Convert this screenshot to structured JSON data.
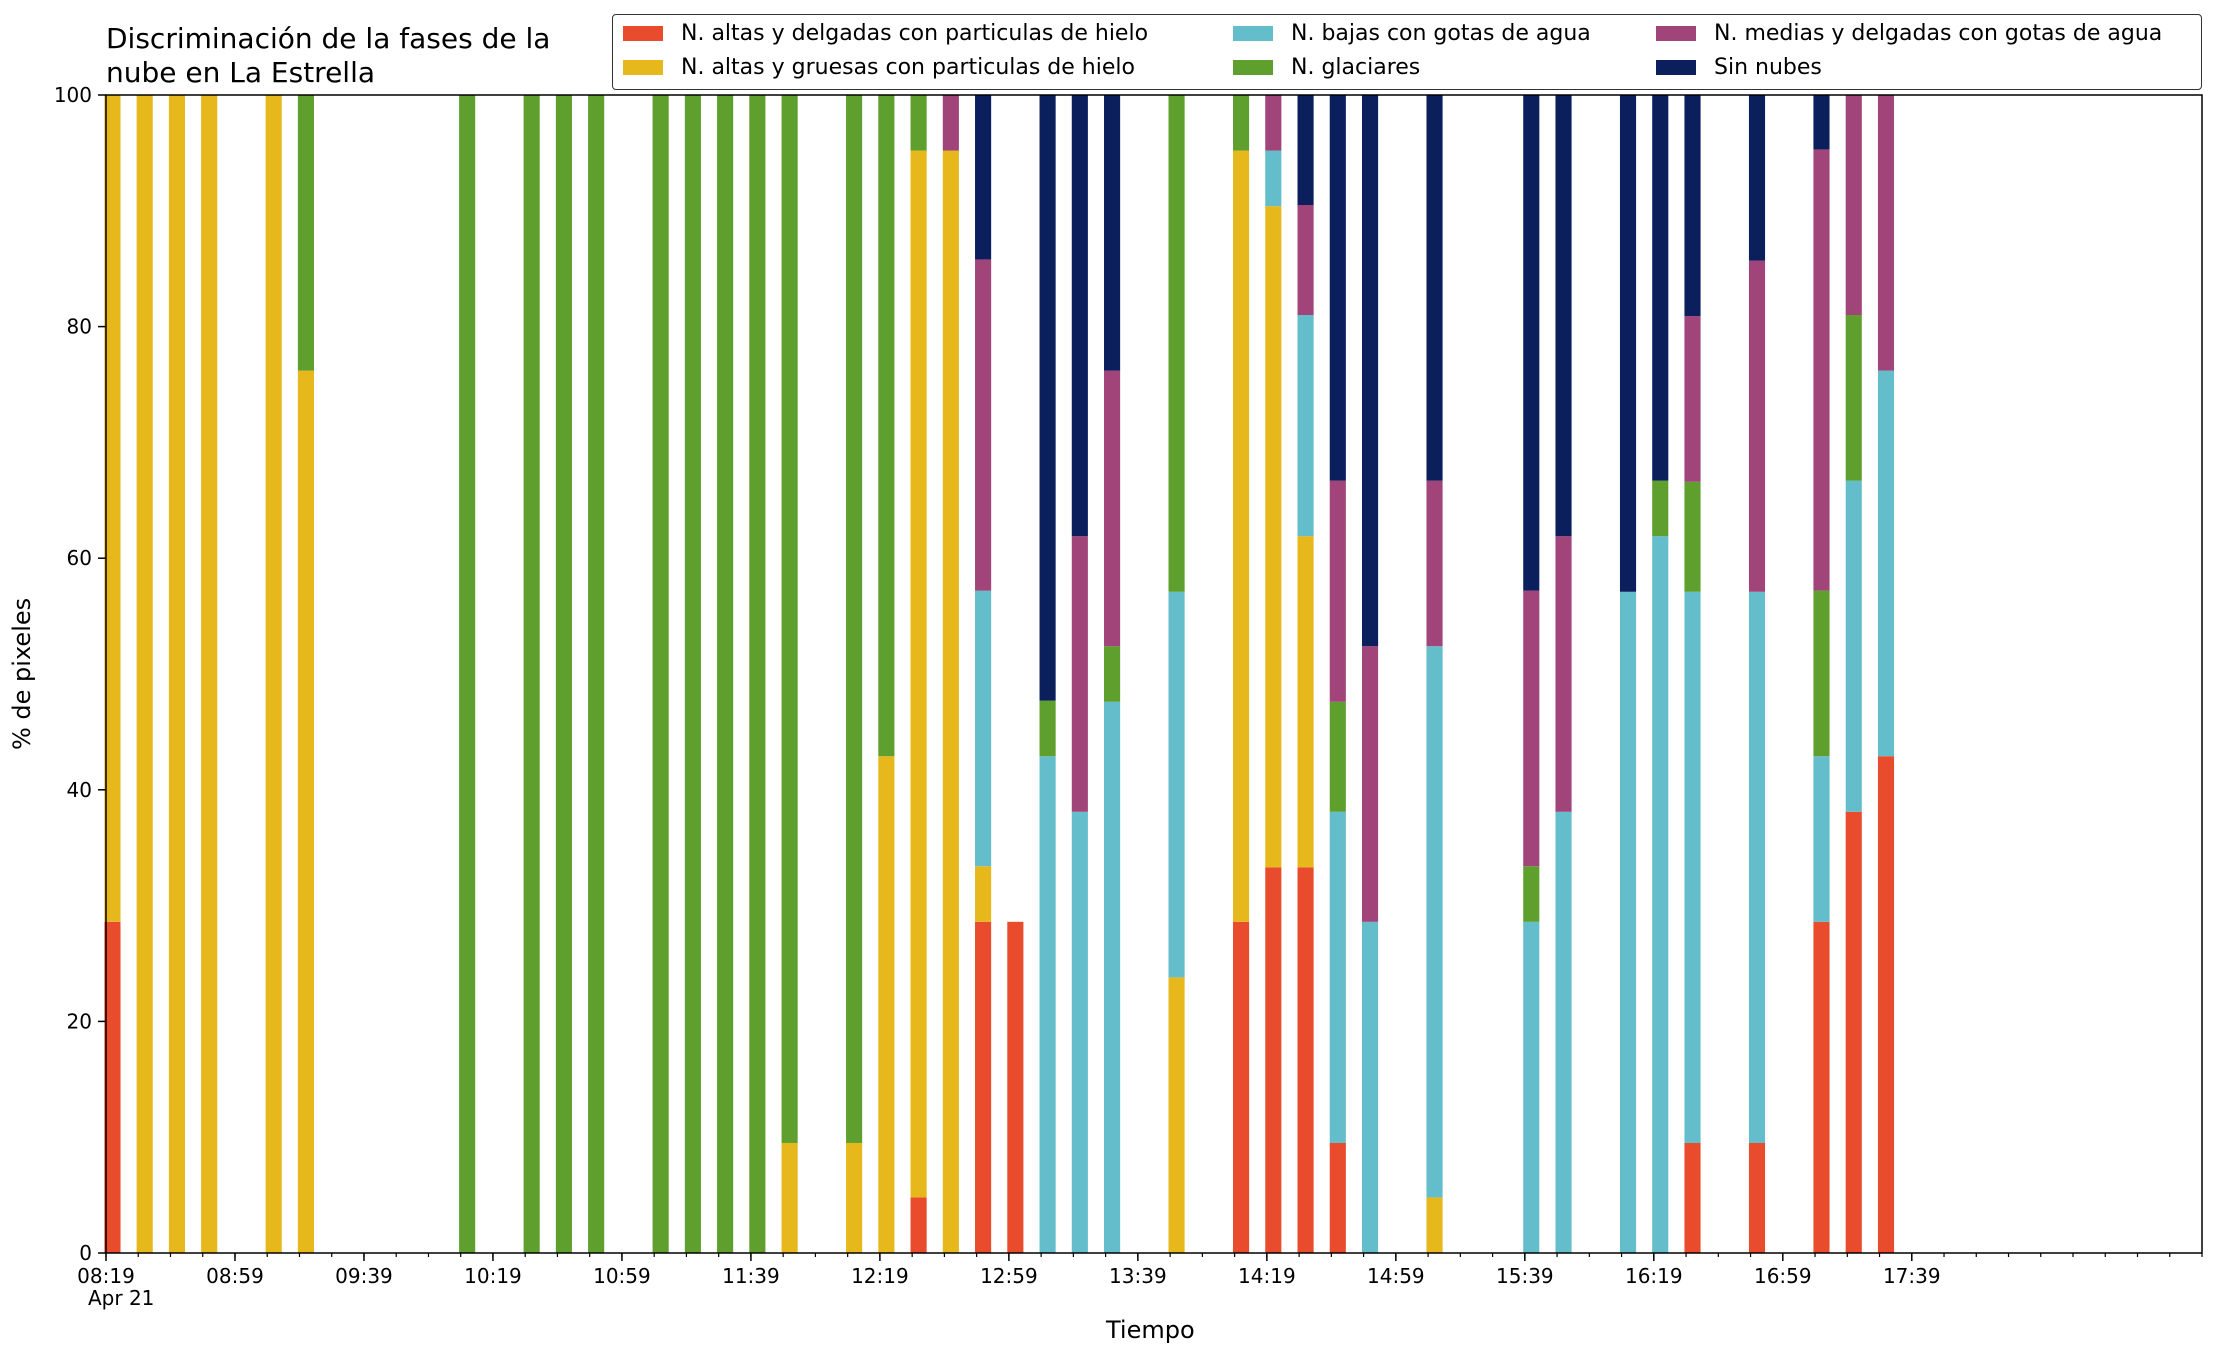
{
  "chart_data": {
    "type": "bar",
    "stacked": true,
    "title": "Discriminación de la fases de la\nnube en La Estrella",
    "xlabel": "Tiempo",
    "ylabel": "% de pixeles",
    "ylim": [
      0,
      100
    ],
    "yticks": [
      "0",
      "20",
      "40",
      "60",
      "80",
      "100"
    ],
    "x_start": "08:19",
    "x_end": "19:09",
    "x_date_label": "Apr 21",
    "x_ticks": [
      "08:19",
      "08:59",
      "09:39",
      "10:19",
      "10:59",
      "11:39",
      "12:19",
      "12:59",
      "13:39",
      "14:19",
      "14:59",
      "15:39",
      "16:19",
      "16:59",
      "17:39"
    ],
    "x_minor_tick_step_min": 10,
    "bar_width_min": 5,
    "grid": false,
    "legend_placement": "top-right",
    "series": [
      {
        "name": "N. altas y delgadas con particulas de hielo",
        "color": "#e94b2d"
      },
      {
        "name": "N. altas y gruesas con particulas de hielo",
        "color": "#e6b81c"
      },
      {
        "name": "N. bajas con gotas de agua",
        "color": "#64bdca"
      },
      {
        "name": "N. glaciares",
        "color": "#5e9f2d"
      },
      {
        "name": "N. medias y delgadas con gotas de agua",
        "color": "#a0447a"
      },
      {
        "name": "Sin nubes",
        "color": "#0b1f5c"
      }
    ],
    "bars": [
      {
        "t": "08:21",
        "v": [
          28.6,
          71.4,
          0,
          0,
          0,
          0
        ]
      },
      {
        "t": "08:31",
        "v": [
          0,
          100,
          0,
          0,
          0,
          0
        ]
      },
      {
        "t": "08:41",
        "v": [
          0,
          100,
          0,
          0,
          0,
          0
        ]
      },
      {
        "t": "08:51",
        "v": [
          0,
          100,
          0,
          0,
          0,
          0
        ]
      },
      {
        "t": "09:11",
        "v": [
          0,
          100,
          0,
          0,
          0,
          0
        ]
      },
      {
        "t": "09:21",
        "v": [
          0,
          76.2,
          0,
          23.8,
          0,
          0
        ]
      },
      {
        "t": "10:11",
        "v": [
          0,
          0,
          0,
          100,
          0,
          0
        ]
      },
      {
        "t": "10:31",
        "v": [
          0,
          0,
          0,
          100,
          0,
          0
        ]
      },
      {
        "t": "10:41",
        "v": [
          0,
          0,
          0,
          100,
          0,
          0
        ]
      },
      {
        "t": "10:51",
        "v": [
          0,
          0,
          0,
          100,
          0,
          0
        ]
      },
      {
        "t": "11:11",
        "v": [
          0,
          0,
          0,
          100,
          0,
          0
        ]
      },
      {
        "t": "11:21",
        "v": [
          0,
          0,
          0,
          100,
          0,
          0
        ]
      },
      {
        "t": "11:31",
        "v": [
          0,
          0,
          0,
          100,
          0,
          0
        ]
      },
      {
        "t": "11:41",
        "v": [
          0,
          0,
          0,
          100,
          0,
          0
        ]
      },
      {
        "t": "11:51",
        "v": [
          0,
          9.5,
          0,
          90.5,
          0,
          0
        ]
      },
      {
        "t": "12:11",
        "v": [
          0,
          9.5,
          0,
          90.5,
          0,
          0
        ]
      },
      {
        "t": "12:21",
        "v": [
          0,
          42.9,
          0,
          57.1,
          0,
          0
        ]
      },
      {
        "t": "12:31",
        "v": [
          4.8,
          90.4,
          0,
          4.8,
          0,
          0
        ]
      },
      {
        "t": "12:41",
        "v": [
          0,
          95.2,
          0,
          0,
          4.8,
          0
        ]
      },
      {
        "t": "12:51",
        "v": [
          28.6,
          4.8,
          23.8,
          0,
          28.6,
          14.2
        ]
      },
      {
        "t": "13:01",
        "v": [
          28.6,
          0,
          0,
          0,
          0,
          0
        ]
      },
      {
        "t": "13:11",
        "v": [
          0,
          0,
          42.9,
          4.8,
          0,
          52.3
        ]
      },
      {
        "t": "13:21",
        "v": [
          0,
          0,
          38.1,
          0,
          23.8,
          38.1
        ]
      },
      {
        "t": "13:31",
        "v": [
          0,
          0,
          47.6,
          4.8,
          23.8,
          23.8
        ]
      },
      {
        "t": "13:51",
        "v": [
          0,
          23.8,
          33.3,
          42.9,
          0,
          0
        ]
      },
      {
        "t": "14:11",
        "v": [
          28.6,
          66.6,
          0,
          4.8,
          0,
          0
        ]
      },
      {
        "t": "14:21",
        "v": [
          33.3,
          57.1,
          4.8,
          0,
          4.8,
          0
        ]
      },
      {
        "t": "14:31",
        "v": [
          33.3,
          28.6,
          19.1,
          0,
          9.5,
          9.5
        ]
      },
      {
        "t": "14:41",
        "v": [
          9.5,
          0,
          28.6,
          9.5,
          19.1,
          33.3
        ]
      },
      {
        "t": "14:51",
        "v": [
          0,
          0,
          28.6,
          0,
          23.8,
          47.6
        ]
      },
      {
        "t": "15:11",
        "v": [
          0,
          4.8,
          47.6,
          0,
          14.3,
          33.3
        ]
      },
      {
        "t": "15:41",
        "v": [
          0,
          0,
          28.6,
          4.8,
          23.8,
          42.8
        ]
      },
      {
        "t": "15:51",
        "v": [
          0,
          0,
          38.1,
          0,
          23.8,
          38.1
        ]
      },
      {
        "t": "16:11",
        "v": [
          0,
          0,
          57.1,
          0,
          0,
          42.9
        ]
      },
      {
        "t": "16:21",
        "v": [
          0,
          0,
          61.9,
          4.8,
          0,
          33.3
        ]
      },
      {
        "t": "16:31",
        "v": [
          9.5,
          0,
          47.6,
          9.5,
          14.3,
          19.1
        ]
      },
      {
        "t": "16:51",
        "v": [
          9.5,
          0,
          47.6,
          0,
          28.6,
          14.3
        ]
      },
      {
        "t": "17:11",
        "v": [
          28.6,
          0,
          14.3,
          14.3,
          38.1,
          4.7
        ]
      },
      {
        "t": "17:21",
        "v": [
          38.1,
          0,
          28.6,
          14.3,
          19.0,
          0
        ]
      },
      {
        "t": "17:31",
        "v": [
          42.9,
          0,
          33.3,
          0,
          23.8,
          0
        ]
      }
    ]
  }
}
